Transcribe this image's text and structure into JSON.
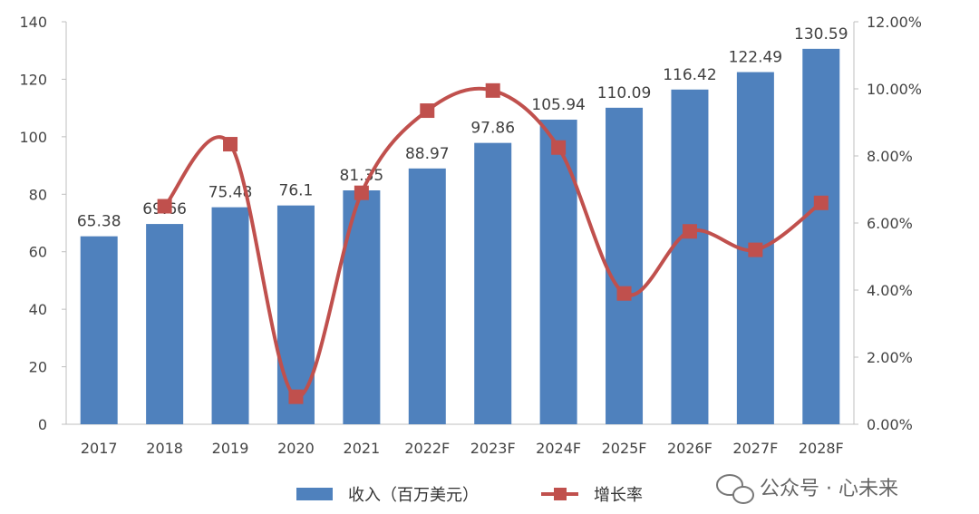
{
  "chart_data": {
    "type": "bar",
    "categories": [
      "2017",
      "2018",
      "2019",
      "2020",
      "2021",
      "2022F",
      "2023F",
      "2024F",
      "2025F",
      "2026F",
      "2027F",
      "2028F"
    ],
    "series": [
      {
        "name": "收入（百万美元）",
        "type": "bar",
        "axis": "left",
        "color": "#4F81BD",
        "values": [
          65.38,
          69.66,
          75.48,
          76.1,
          81.35,
          88.97,
          97.86,
          105.94,
          110.09,
          116.42,
          122.49,
          130.59
        ],
        "labels": [
          "65.38",
          "69.66",
          "75.48",
          "76.1",
          "81.35",
          "88.97",
          "97.86",
          "105.94",
          "110.09",
          "116.42",
          "122.49",
          "130.59"
        ]
      },
      {
        "name": "增长率",
        "type": "line",
        "axis": "right",
        "color": "#C0504D",
        "values": [
          null,
          6.5,
          8.35,
          0.82,
          6.9,
          9.35,
          9.95,
          8.25,
          3.9,
          5.75,
          5.2,
          6.6
        ]
      }
    ],
    "left_axis": {
      "range": [
        0,
        140
      ],
      "ticks": [
        "0",
        "20",
        "40",
        "60",
        "80",
        "100",
        "120",
        "140"
      ]
    },
    "right_axis": {
      "range": [
        0,
        12
      ],
      "ticks": [
        "0.00%",
        "2.00%",
        "4.00%",
        "6.00%",
        "8.00%",
        "10.00%",
        "12.00%"
      ]
    },
    "legend_position": "bottom",
    "grid": false
  },
  "watermark": {
    "text": "公众号 · 心未来",
    "icon": "wechat-icon"
  }
}
